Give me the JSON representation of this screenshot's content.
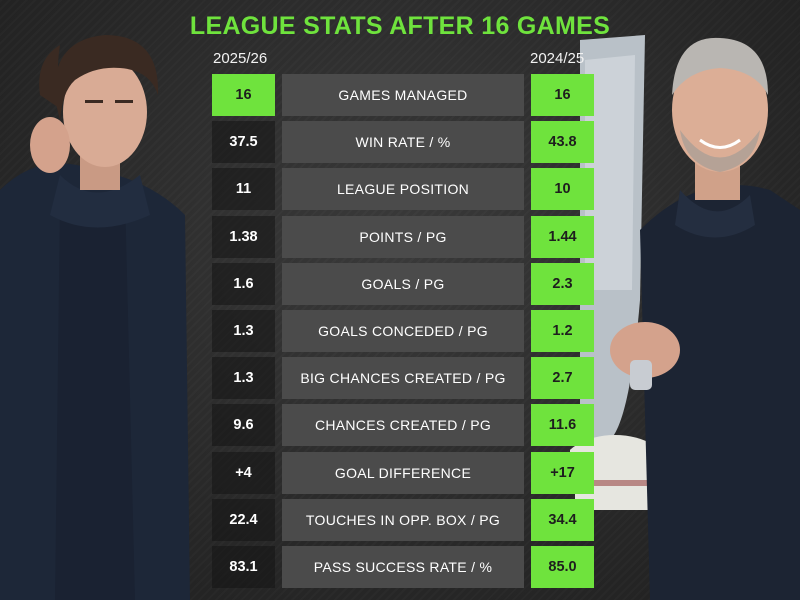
{
  "title": "LEAGUE STATS AFTER 16 GAMES",
  "seasons": {
    "left": "2025/26",
    "right": "2024/25"
  },
  "colors": {
    "accent": "#6fe33d",
    "label_bg": "#4b4b4b",
    "background": "#2b2b2b"
  },
  "rows": [
    {
      "label": "GAMES MANAGED",
      "left": "16",
      "right": "16",
      "left_highlight": true
    },
    {
      "label": "WIN RATE / %",
      "left": "37.5",
      "right": "43.8",
      "left_highlight": false
    },
    {
      "label": "LEAGUE POSITION",
      "left": "11",
      "right": "10",
      "left_highlight": false
    },
    {
      "label": "POINTS / PG",
      "left": "1.38",
      "right": "1.44",
      "left_highlight": false
    },
    {
      "label": "GOALS / PG",
      "left": "1.6",
      "right": "2.3",
      "left_highlight": false
    },
    {
      "label": "GOALS CONCEDED / PG",
      "left": "1.3",
      "right": "1.2",
      "left_highlight": false
    },
    {
      "label": "BIG CHANCES CREATED / PG",
      "left": "1.3",
      "right": "2.7",
      "left_highlight": false
    },
    {
      "label": "CHANCES CREATED / PG",
      "left": "9.6",
      "right": "11.6",
      "left_highlight": false
    },
    {
      "label": "GOAL DIFFERENCE",
      "left": "+4",
      "right": "+17",
      "left_highlight": false
    },
    {
      "label": "TOUCHES IN OPP. BOX / PG",
      "left": "22.4",
      "right": "34.4",
      "left_highlight": false
    },
    {
      "label": "PASS SUCCESS RATE / %",
      "left": "83.1",
      "right": "85.0",
      "left_highlight": false
    }
  ]
}
